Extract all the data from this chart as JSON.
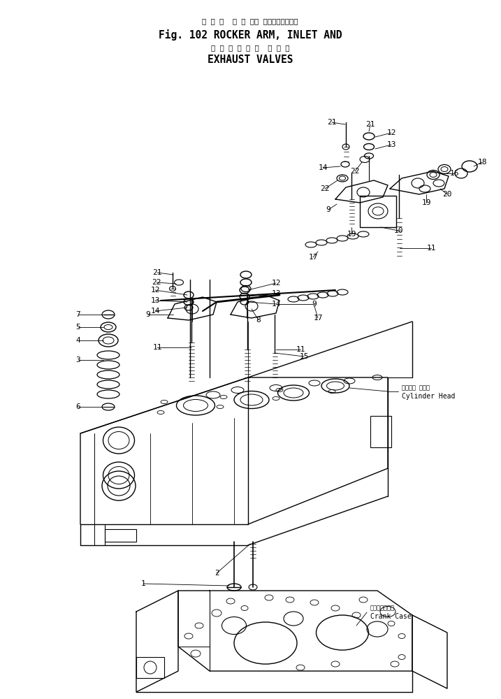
{
  "bg_color": "#ffffff",
  "lc": "#000000",
  "title": {
    "jp1": "ロ ッ カ  ア ー ム、 インレットおよび",
    "en1": "Fig. 102 ROCKER ARM, INLET AND",
    "jp2": "エ キ ゾ ー ス ト  バ ル ブ",
    "en2": "EXHAUST VALVES"
  }
}
